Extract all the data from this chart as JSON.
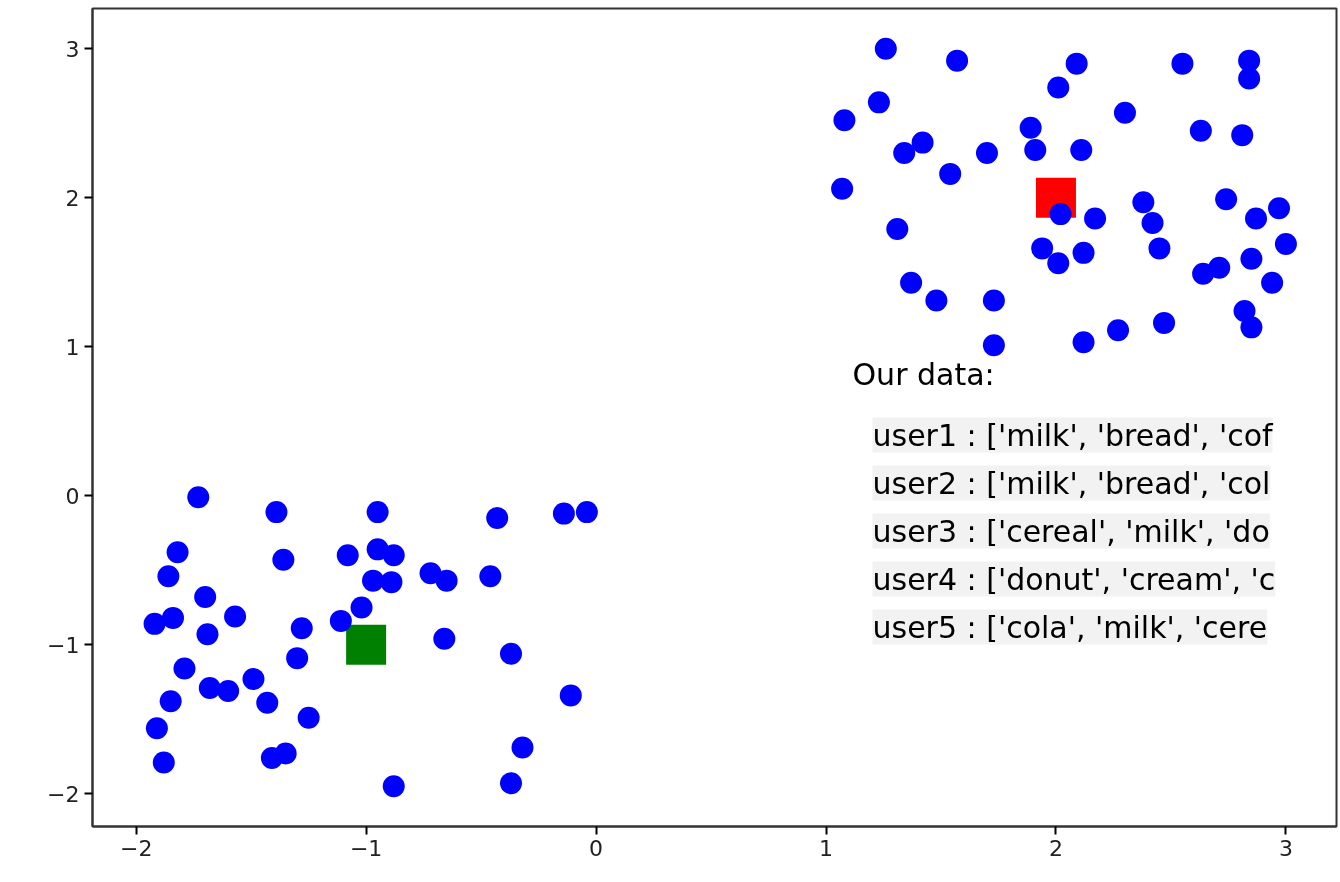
{
  "chart_data": {
    "type": "scatter",
    "xlim": [
      -2.19,
      3.22
    ],
    "ylim": [
      -2.22,
      3.27
    ],
    "xticks": [
      {
        "value": -2,
        "label": "−2"
      },
      {
        "value": -1,
        "label": "−1"
      },
      0,
      1,
      2,
      3
    ],
    "yticks": [
      {
        "value": -2,
        "label": "−2"
      },
      {
        "value": -1,
        "label": "−1"
      },
      0,
      1,
      2,
      3
    ],
    "grid": false,
    "series": [
      {
        "color": "#0000ff",
        "marker": "circle",
        "x": [
          1.26,
          1.57,
          2.09,
          2.01,
          2.55,
          2.84,
          2.84,
          1.23,
          1.08,
          1.42,
          1.34,
          1.7,
          1.54,
          1.89,
          1.91,
          2.11,
          2.3,
          2.63,
          2.81,
          1.07,
          1.31,
          2.02,
          2.17,
          2.38,
          2.42,
          2.45,
          2.74,
          2.87,
          2.97,
          3.0,
          1.94,
          2.01,
          2.12,
          2.64,
          2.71,
          2.85,
          2.94,
          2.82,
          2.85,
          1.37,
          1.48,
          1.73,
          1.73,
          2.12,
          2.27,
          2.47,
          -1.73,
          -1.39,
          -0.95,
          -0.43,
          -0.14,
          -0.04,
          -1.82,
          -1.86,
          -1.36,
          -1.08,
          -0.95,
          -0.88,
          -0.97,
          -0.89,
          -0.72,
          -0.65,
          -0.46,
          -1.7,
          -1.84,
          -1.92,
          -1.57,
          -1.69,
          -1.28,
          -1.3,
          -1.11,
          -1.02,
          -0.66,
          -0.37,
          -1.79,
          -1.68,
          -1.6,
          -1.49,
          -1.43,
          -1.25,
          -1.85,
          -1.91,
          -1.88,
          -1.41,
          -1.35,
          -0.88,
          -0.32,
          -0.37,
          -0.11
        ],
        "values": [
          3.0,
          2.92,
          2.9,
          2.74,
          2.9,
          2.92,
          2.8,
          2.64,
          2.52,
          2.37,
          2.3,
          2.3,
          2.16,
          2.47,
          2.32,
          2.32,
          2.57,
          2.45,
          2.42,
          2.06,
          1.79,
          1.89,
          1.86,
          1.97,
          1.83,
          1.66,
          1.99,
          1.86,
          1.93,
          1.69,
          1.66,
          1.56,
          1.63,
          1.49,
          1.53,
          1.59,
          1.43,
          1.24,
          1.13,
          1.43,
          1.31,
          1.31,
          1.01,
          1.03,
          1.11,
          1.16,
          -0.01,
          -0.11,
          -0.11,
          -0.15,
          -0.12,
          -0.11,
          -0.38,
          -0.54,
          -0.43,
          -0.4,
          -0.36,
          -0.4,
          -0.57,
          -0.58,
          -0.52,
          -0.57,
          -0.54,
          -0.68,
          -0.82,
          -0.86,
          -0.81,
          -0.93,
          -0.89,
          -1.09,
          -0.84,
          -0.75,
          -0.96,
          -1.06,
          -1.16,
          -1.29,
          -1.31,
          -1.23,
          -1.39,
          -1.49,
          -1.38,
          -1.56,
          -1.79,
          -1.76,
          -1.73,
          -1.95,
          -1.69,
          -1.93,
          -1.34
        ]
      },
      {
        "color": "#ff0000",
        "marker": "square",
        "x": [
          2
        ],
        "values": [
          2
        ]
      },
      {
        "color": "#008000",
        "marker": "square",
        "x": [
          -1
        ],
        "values": [
          -1
        ]
      }
    ],
    "annotations": [
      "Our data:",
      "user1 : ['milk', 'bread', 'cof",
      "user2 : ['milk', 'bread', 'col",
      "user3 : ['cereal', 'milk', 'do",
      "user4 : ['donut', 'cream', 'c",
      "user5 : ['cola', 'milk', 'cere"
    ]
  }
}
